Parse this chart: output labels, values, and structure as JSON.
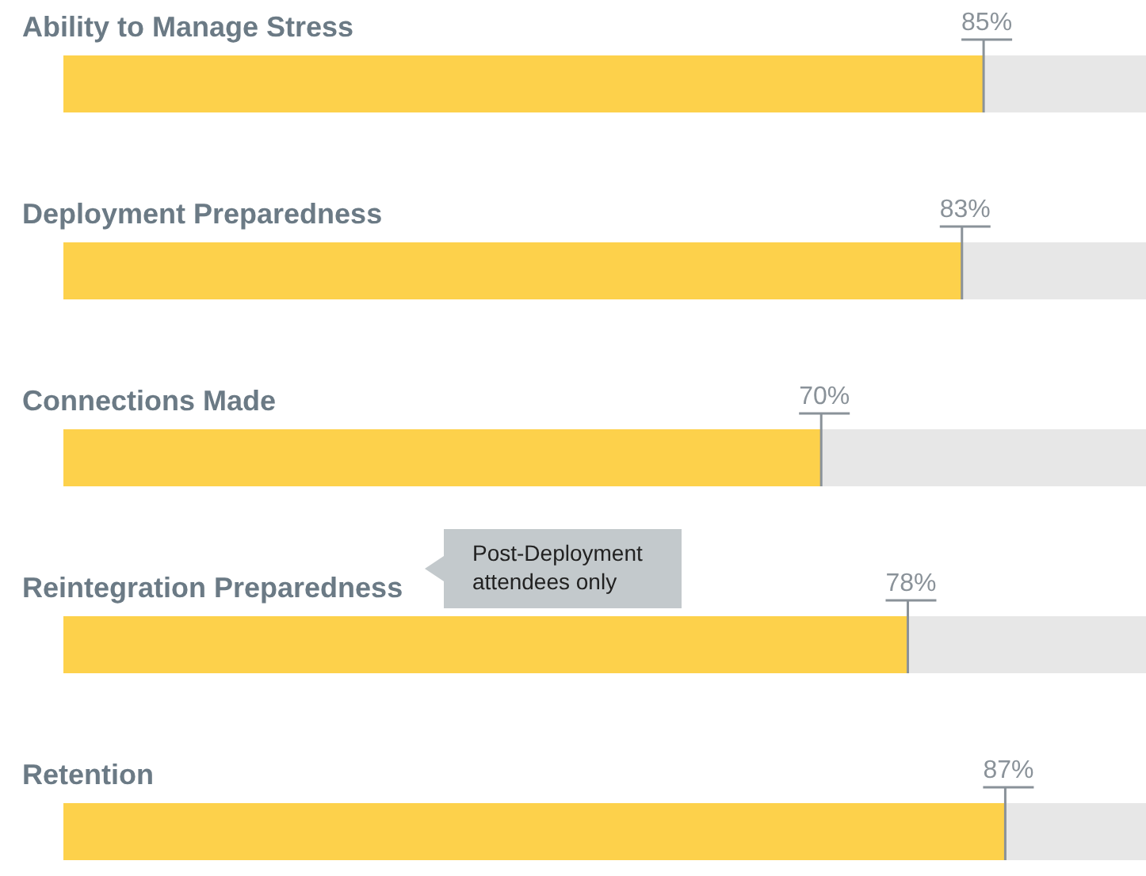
{
  "chart_data": {
    "type": "bar",
    "orientation": "horizontal",
    "categories": [
      "Ability to Manage Stress",
      "Deployment Preparedness",
      "Connections Made",
      "Reintegration Preparedness",
      "Retention"
    ],
    "values": [
      85,
      83,
      70,
      78,
      87
    ],
    "value_labels": [
      "85%",
      "83%",
      "70%",
      "78%",
      "87%"
    ],
    "color": "#fdd14b",
    "xlim": [
      0,
      100
    ],
    "tick_labels": false,
    "annotations": [
      "Post-Deployment attendees only"
    ]
  }
}
